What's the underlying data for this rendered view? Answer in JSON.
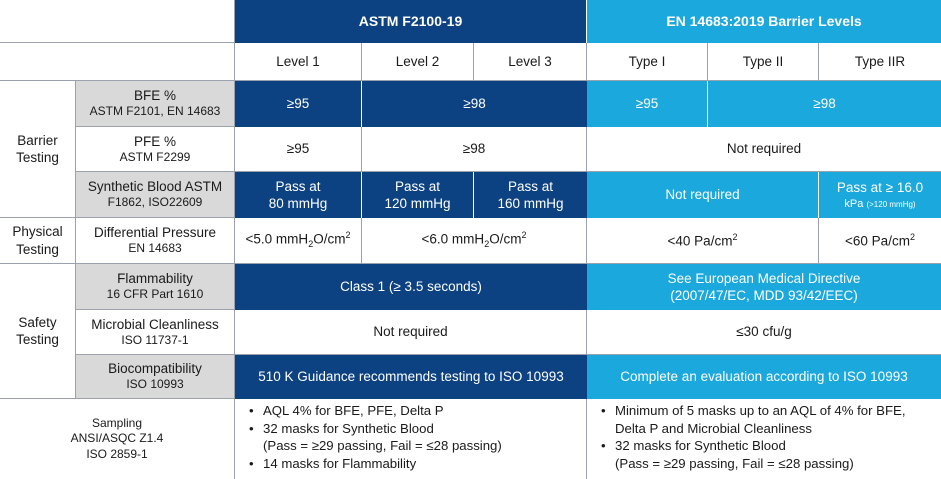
{
  "header": {
    "astm": "ASTM F2100-19",
    "en": "EN 14683:2019 Barrier Levels"
  },
  "levels": [
    "Level 1",
    "Level 2",
    "Level 3",
    "Type I",
    "Type II",
    "Type IIR"
  ],
  "groups": {
    "barrier": [
      "Barrier",
      "Testing"
    ],
    "physical": [
      "Physical",
      "Testing"
    ],
    "safety": [
      "Safety",
      "Testing"
    ]
  },
  "rows": {
    "bfe": {
      "name": "BFE %",
      "std": "ASTM F2101, EN 14683",
      "astm_l1": "≥95",
      "astm_l23": "≥98",
      "en_t1": "≥95",
      "en_t2": "≥98"
    },
    "pfe": {
      "name": "PFE %",
      "std": "ASTM F2299",
      "astm_l1": "≥95",
      "astm_l23": "≥98",
      "en_all": "Not required"
    },
    "synth": {
      "name": "Synthetic Blood ASTM",
      "std": "F1862, ISO22609",
      "l1": [
        "Pass at",
        "80 mmHg"
      ],
      "l2": [
        "Pass at",
        "120 mmHg"
      ],
      "l3": [
        "Pass at",
        "160 mmHg"
      ],
      "en_t12": "Not required",
      "en_t3_main": "Pass at  ≥ 16.0",
      "en_t3_unit": "kPa",
      "en_t3_note": "(>120 mmHg)"
    },
    "dp": {
      "name": "Differential Pressure",
      "std": "EN 14683",
      "astm_l1": "<5.0 mmH",
      "astm_l1_sub": "2",
      "astm_l1_tail": "O/cm",
      "astm_l1_sup": "2",
      "astm_l23": "<6.0 mmH",
      "astm_l23_sub": "2",
      "astm_l23_tail": "O/cm",
      "astm_l23_sup": "2",
      "en_t12": "<40 Pa/cm",
      "en_t12_sup": "2",
      "en_t3": "<60 Pa/cm",
      "en_t3_sup": "2"
    },
    "flam": {
      "name": "Flammability",
      "std": "16 CFR Part 1610",
      "astm": "Class 1 (≥ 3.5 seconds)",
      "en": [
        "See European Medical Directive",
        "(2007/47/EC, MDD 93/42/EEC)"
      ]
    },
    "micro": {
      "name": "Microbial Cleanliness",
      "std": "ISO 11737-1",
      "astm": "Not required",
      "en": "≤30 cfu/g"
    },
    "bio": {
      "name": "Biocompatibility",
      "std": "ISO 10993",
      "astm": "510 K Guidance recommends testing to ISO 10993",
      "en": "Complete an evaluation according to ISO 10993"
    },
    "sampling": {
      "label": [
        "Sampling",
        "ANSI/ASQC Z1.4",
        "ISO 2859-1"
      ],
      "astm_items": [
        "AQL 4% for BFE, PFE, Delta P",
        "32 masks for Synthetic Blood",
        "(Pass = ≥29 passing, Fail = ≤28 passing)",
        "14 masks for Flammability"
      ],
      "en_items": [
        "Minimum of 5 masks up to an AQL of 4% for BFE,",
        "Delta P and Microbial Cleanliness",
        "32 masks for Synthetic Blood",
        "(Pass = ≥29 passing, Fail = ≤28 passing)"
      ]
    }
  },
  "colors": {
    "astm_blue": "#0d4282",
    "en_blue": "#1ba8dc",
    "gray": "#d9d9d9"
  }
}
